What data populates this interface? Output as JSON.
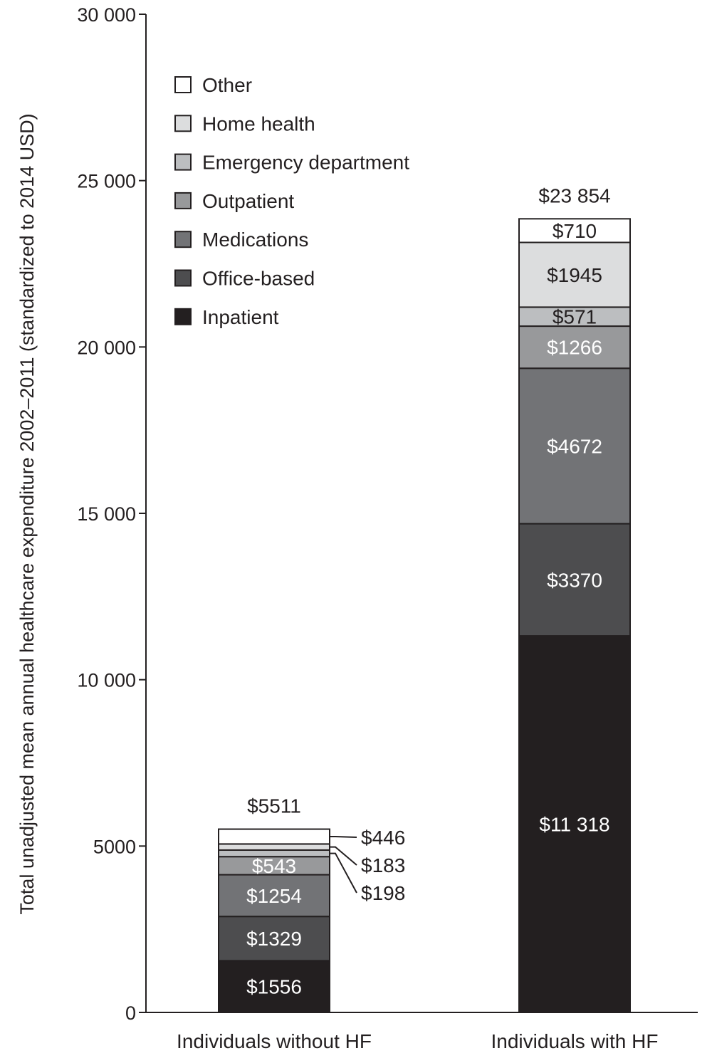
{
  "chart_data": {
    "type": "bar",
    "stacked": true,
    "ylabel": "Total unadjusted mean annual healthcare expenditure 2002–2011 (standardized to 2014 USD)",
    "xlabel": "",
    "ylim": [
      0,
      30000
    ],
    "yticks": [
      0,
      5000,
      10000,
      15000,
      20000,
      25000,
      30000
    ],
    "ytick_labels": [
      "0",
      "5000",
      "10 000",
      "15 000",
      "20 000",
      "25 000",
      "30 000"
    ],
    "categories": [
      "Individuals without HF",
      "Individuals with HF"
    ],
    "totals": [
      5511,
      23854
    ],
    "total_labels": [
      "$5511",
      "$23 854"
    ],
    "legend_position": "top-left",
    "series": [
      {
        "name": "Inpatient",
        "color": "#231f20",
        "text_color": "#ffffff",
        "values": [
          1556,
          11318
        ],
        "labels": [
          "$1556",
          "$11 318"
        ]
      },
      {
        "name": "Office-based",
        "color": "#4d4d4f",
        "text_color": "#ffffff",
        "values": [
          1329,
          3370
        ],
        "labels": [
          "$1329",
          "$3370"
        ]
      },
      {
        "name": "Medications",
        "color": "#727376",
        "text_color": "#ffffff",
        "values": [
          1254,
          4672
        ],
        "labels": [
          "$1254",
          "$4672"
        ]
      },
      {
        "name": "Outpatient",
        "color": "#98999b",
        "text_color": "#ffffff",
        "values": [
          543,
          1266
        ],
        "labels": [
          "$543",
          "$1266"
        ]
      },
      {
        "name": "Emergency department",
        "color": "#bcbec0",
        "text_color": "#231f20",
        "values": [
          198,
          571
        ],
        "labels": [
          "$198",
          "$571"
        ]
      },
      {
        "name": "Home health",
        "color": "#dcddde",
        "text_color": "#231f20",
        "values": [
          183,
          1945
        ],
        "labels": [
          "$183",
          "$1945"
        ]
      },
      {
        "name": "Other",
        "color": "#ffffff",
        "text_color": "#231f20",
        "values": [
          446,
          710
        ],
        "labels": [
          "$446",
          "$710"
        ]
      }
    ],
    "legend_order": [
      "Other",
      "Home health",
      "Emergency department",
      "Outpatient",
      "Medications",
      "Office-based",
      "Inpatient"
    ],
    "external_labels": [
      {
        "category": 0,
        "series": "Other",
        "text": "$446"
      },
      {
        "category": 0,
        "series": "Home health",
        "text": "$183"
      },
      {
        "category": 0,
        "series": "Emergency department",
        "text": "$198"
      }
    ],
    "grid": false
  }
}
